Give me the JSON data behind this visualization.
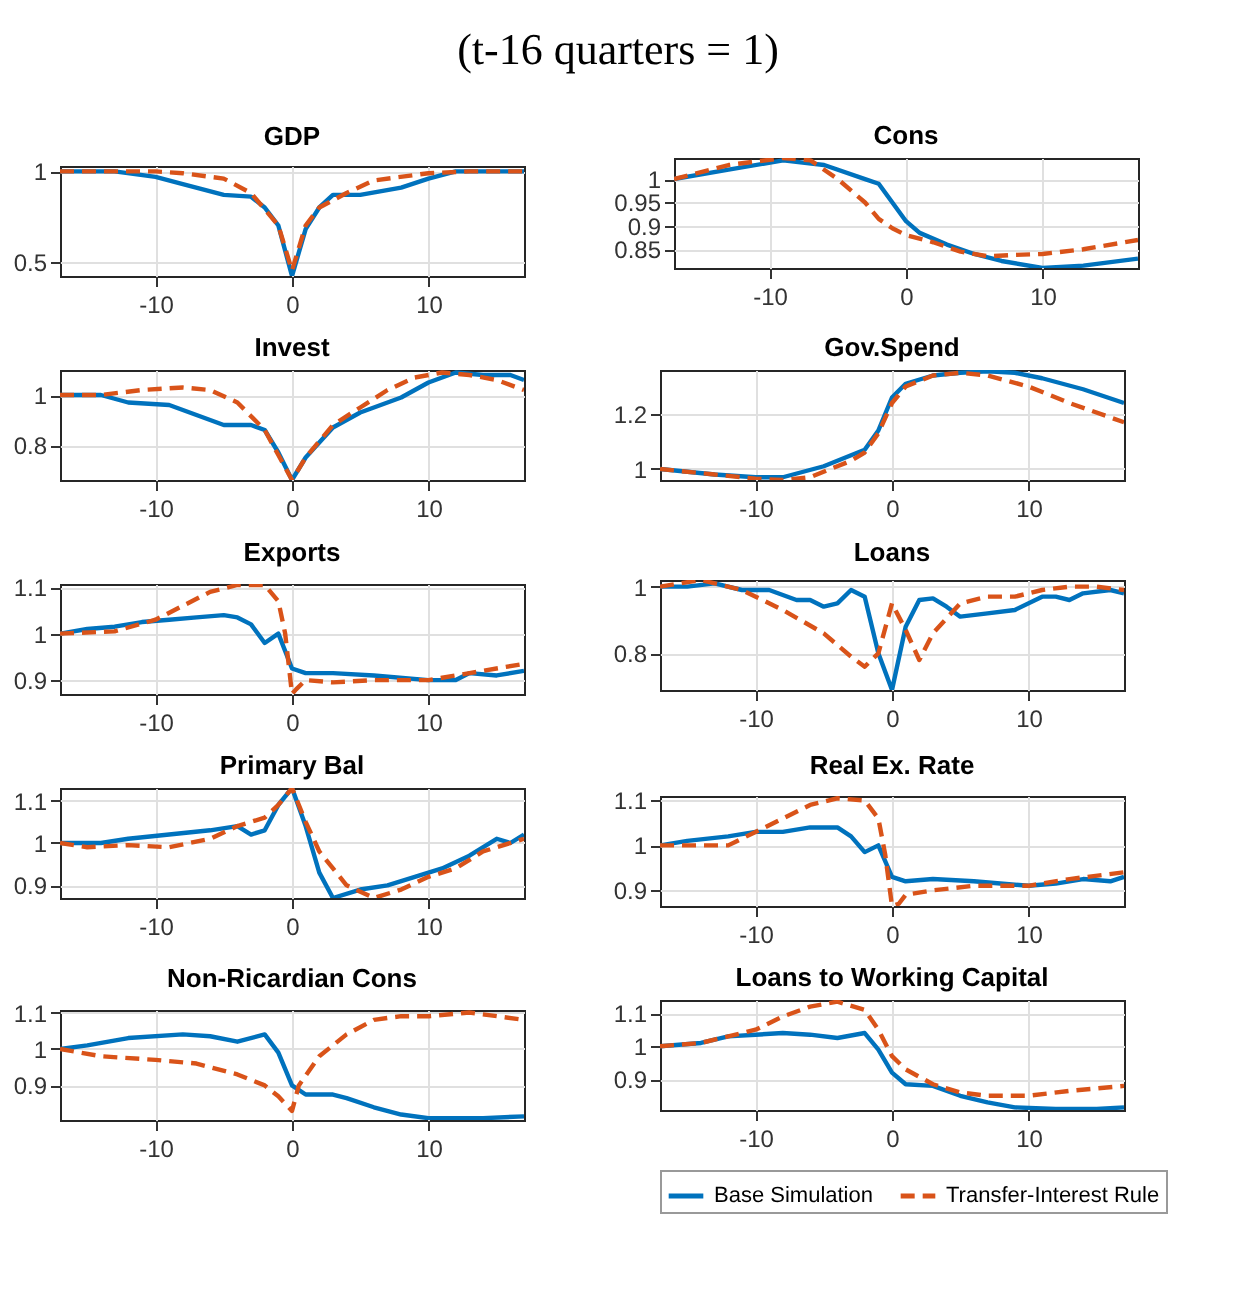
{
  "chart_data": [
    {
      "type": "line",
      "title": "GDP",
      "annotations": [
        "(t-16 quarters = 1)"
      ],
      "xlim": [
        -17,
        17
      ],
      "xticks": [
        -10,
        0,
        10
      ],
      "ylim": [
        0.42,
        1.03
      ],
      "yticks": [
        0.5,
        1
      ],
      "grid": true,
      "series": [
        {
          "color": "#0072bd",
          "line_style": "solid",
          "x": [
            -17,
            -13,
            -10,
            -8,
            -5,
            -3,
            -2,
            -1,
            0,
            1,
            2,
            3,
            5,
            8,
            10,
            12,
            17
          ],
          "values": [
            1,
            1,
            0.97,
            0.93,
            0.87,
            0.86,
            0.8,
            0.7,
            0.42,
            0.68,
            0.8,
            0.87,
            0.87,
            0.91,
            0.96,
            1,
            1
          ]
        },
        {
          "color": "#d95319",
          "line_style": "dashed",
          "x": [
            -17,
            -10,
            -8,
            -5,
            -3,
            -1,
            0,
            1,
            2,
            4,
            6,
            10,
            13,
            17
          ],
          "values": [
            1,
            1,
            0.99,
            0.96,
            0.88,
            0.7,
            0.45,
            0.7,
            0.8,
            0.88,
            0.95,
            0.99,
            1,
            1
          ]
        }
      ]
    },
    {
      "type": "line",
      "title": "Cons",
      "xlim": [
        -17,
        17
      ],
      "xticks": [
        -10,
        0,
        10
      ],
      "ylim": [
        0.81,
        1.045
      ],
      "yticks": [
        0.85,
        0.9,
        0.95,
        1
      ],
      "grid": true,
      "series": [
        {
          "color": "#0072bd",
          "line_style": "solid",
          "x": [
            -17,
            -13,
            -9,
            -6,
            -3,
            -2,
            -1,
            0,
            1,
            3,
            5,
            7,
            10,
            13,
            17
          ],
          "values": [
            1,
            1.02,
            1.04,
            1.03,
            1,
            0.99,
            0.95,
            0.91,
            0.885,
            0.86,
            0.84,
            0.825,
            0.81,
            0.815,
            0.83
          ]
        },
        {
          "color": "#d95319",
          "line_style": "dashed",
          "x": [
            -17,
            -13,
            -9,
            -7,
            -5,
            -3,
            -2,
            -1,
            0,
            2,
            4,
            6,
            8,
            10,
            13,
            17
          ],
          "values": [
            1,
            1.03,
            1.045,
            1.04,
            1,
            0.95,
            0.915,
            0.895,
            0.88,
            0.865,
            0.845,
            0.835,
            0.838,
            0.84,
            0.85,
            0.87
          ]
        }
      ]
    },
    {
      "type": "line",
      "title": "Invest",
      "xlim": [
        -17,
        17
      ],
      "xticks": [
        -10,
        0,
        10
      ],
      "ylim": [
        0.66,
        1.1
      ],
      "yticks": [
        0.8,
        1
      ],
      "grid": true,
      "series": [
        {
          "color": "#0072bd",
          "line_style": "solid",
          "x": [
            -17,
            -14,
            -12,
            -9,
            -7,
            -5,
            -3,
            -2,
            -1,
            0,
            1,
            3,
            5,
            8,
            10,
            12,
            14,
            16,
            17
          ],
          "values": [
            1,
            1,
            0.97,
            0.96,
            0.92,
            0.88,
            0.88,
            0.86,
            0.77,
            0.66,
            0.75,
            0.87,
            0.93,
            0.99,
            1.05,
            1.09,
            1.08,
            1.08,
            1.06
          ]
        },
        {
          "color": "#d95319",
          "line_style": "dashed",
          "x": [
            -17,
            -14,
            -11,
            -8,
            -6,
            -4,
            -2,
            -1,
            0,
            1,
            3,
            5,
            7,
            9,
            11,
            13,
            15,
            17
          ],
          "values": [
            1,
            1,
            1.02,
            1.03,
            1.02,
            0.97,
            0.86,
            0.76,
            0.66,
            0.75,
            0.88,
            0.95,
            1.02,
            1.07,
            1.09,
            1.08,
            1.06,
            1.02
          ]
        }
      ]
    },
    {
      "type": "line",
      "title": "Gov.Spend",
      "xlim": [
        -17,
        17
      ],
      "xticks": [
        -10,
        0,
        10
      ],
      "ylim": [
        0.96,
        1.36
      ],
      "yticks": [
        1,
        1.2
      ],
      "grid": true,
      "series": [
        {
          "color": "#0072bd",
          "line_style": "solid",
          "x": [
            -17,
            -13,
            -10,
            -8,
            -5,
            -3,
            -2,
            -1,
            0,
            1,
            3,
            5,
            7,
            9,
            11,
            14,
            17
          ],
          "values": [
            1,
            0.98,
            0.97,
            0.97,
            1.01,
            1.05,
            1.07,
            1.14,
            1.26,
            1.31,
            1.34,
            1.35,
            1.355,
            1.35,
            1.33,
            1.29,
            1.24
          ]
        },
        {
          "color": "#d95319",
          "line_style": "dashed",
          "x": [
            -17,
            -13,
            -10,
            -8,
            -6,
            -3,
            -2,
            -1,
            0,
            1,
            3,
            5,
            7,
            10,
            13,
            17
          ],
          "values": [
            1,
            0.98,
            0.965,
            0.96,
            0.97,
            1.03,
            1.06,
            1.13,
            1.24,
            1.3,
            1.34,
            1.35,
            1.34,
            1.3,
            1.24,
            1.17
          ]
        }
      ]
    },
    {
      "type": "line",
      "title": "Exports",
      "xlim": [
        -17,
        17
      ],
      "xticks": [
        -10,
        0,
        10
      ],
      "ylim": [
        0.87,
        1.107
      ],
      "yticks": [
        0.9,
        1,
        1.1
      ],
      "grid": true,
      "series": [
        {
          "color": "#0072bd",
          "line_style": "solid",
          "x": [
            -17,
            -15,
            -13,
            -11,
            -9,
            -7,
            -5,
            -4,
            -3,
            -2,
            -1,
            0,
            1,
            3,
            6,
            10,
            12,
            13,
            15,
            17
          ],
          "values": [
            1,
            1.01,
            1.015,
            1.025,
            1.03,
            1.035,
            1.04,
            1.035,
            1.02,
            0.98,
            1,
            0.925,
            0.915,
            0.915,
            0.91,
            0.9,
            0.9,
            0.915,
            0.91,
            0.92
          ]
        },
        {
          "color": "#d95319",
          "line_style": "dashed",
          "x": [
            -17,
            -13,
            -10,
            -8,
            -6,
            -4,
            -2,
            -1,
            -0.5,
            0,
            0.3,
            1,
            3,
            6,
            10,
            13,
            17
          ],
          "values": [
            1,
            1.005,
            1.03,
            1.06,
            1.09,
            1.105,
            1.105,
            1.07,
            1,
            0.87,
            0.88,
            0.9,
            0.895,
            0.9,
            0.9,
            0.915,
            0.935
          ]
        }
      ]
    },
    {
      "type": "line",
      "title": "Loans",
      "xlim": [
        -17,
        17
      ],
      "xticks": [
        -10,
        0,
        10
      ],
      "ylim": [
        0.69,
        1.02
      ],
      "yticks": [
        0.8,
        1
      ],
      "grid": true,
      "series": [
        {
          "color": "#0072bd",
          "line_style": "solid",
          "x": [
            -17,
            -15,
            -13,
            -11,
            -9,
            -7,
            -6,
            -5,
            -4,
            -3,
            -2,
            -1,
            0,
            1,
            2,
            3,
            4,
            5,
            7,
            9,
            11,
            12,
            13,
            14,
            16,
            17
          ],
          "values": [
            1,
            1,
            1.01,
            0.99,
            0.99,
            0.96,
            0.96,
            0.94,
            0.95,
            0.99,
            0.97,
            0.8,
            0.69,
            0.88,
            0.96,
            0.965,
            0.94,
            0.91,
            0.92,
            0.93,
            0.97,
            0.97,
            0.96,
            0.98,
            0.99,
            0.98
          ]
        },
        {
          "color": "#d95319",
          "line_style": "dashed",
          "x": [
            -17,
            -14,
            -11,
            -8,
            -5,
            -3,
            -2,
            -1,
            0,
            1,
            2,
            3,
            5,
            7,
            9,
            11,
            13,
            15,
            17
          ],
          "values": [
            1,
            1.02,
            0.99,
            0.93,
            0.86,
            0.79,
            0.76,
            0.8,
            0.95,
            0.87,
            0.78,
            0.86,
            0.95,
            0.97,
            0.97,
            0.99,
            1,
            1,
            0.99
          ]
        }
      ]
    },
    {
      "type": "line",
      "title": "Primary Bal",
      "xlim": [
        -17,
        17
      ],
      "xticks": [
        -10,
        0,
        10
      ],
      "ylim": [
        0.87,
        1.13
      ],
      "yticks": [
        0.9,
        1,
        1.1
      ],
      "grid": true,
      "series": [
        {
          "color": "#0072bd",
          "line_style": "solid",
          "x": [
            -17,
            -14,
            -12,
            -9,
            -6,
            -4,
            -3,
            -2,
            -1,
            0,
            1,
            2,
            3,
            5,
            7,
            9,
            11,
            13,
            15,
            16,
            17
          ],
          "values": [
            1,
            1,
            1.01,
            1.02,
            1.03,
            1.04,
            1.02,
            1.03,
            1.09,
            1.13,
            1.04,
            0.93,
            0.87,
            0.89,
            0.9,
            0.92,
            0.94,
            0.97,
            1.01,
            1,
            1.02
          ]
        },
        {
          "color": "#d95319",
          "line_style": "dashed",
          "x": [
            -17,
            -15,
            -12,
            -9,
            -6,
            -4,
            -2,
            -1,
            0,
            1,
            2,
            4,
            6,
            8,
            10,
            12,
            14,
            17
          ],
          "values": [
            1,
            0.99,
            0.995,
            0.99,
            1.01,
            1.04,
            1.06,
            1.09,
            1.13,
            1.05,
            0.98,
            0.9,
            0.87,
            0.89,
            0.92,
            0.94,
            0.98,
            1.01
          ]
        }
      ]
    },
    {
      "type": "line",
      "title": "Real Ex. Rate",
      "xlim": [
        -17,
        17
      ],
      "xticks": [
        -10,
        0,
        10
      ],
      "ylim": [
        0.865,
        1.11
      ],
      "yticks": [
        0.9,
        1,
        1.1
      ],
      "grid": true,
      "series": [
        {
          "color": "#0072bd",
          "line_style": "solid",
          "x": [
            -17,
            -15,
            -12,
            -10,
            -8,
            -6,
            -4,
            -3,
            -2,
            -1,
            0,
            1,
            3,
            6,
            10,
            12,
            14,
            16,
            17
          ],
          "values": [
            1,
            1.01,
            1.02,
            1.03,
            1.03,
            1.04,
            1.04,
            1.02,
            0.985,
            1,
            0.93,
            0.92,
            0.925,
            0.92,
            0.91,
            0.915,
            0.925,
            0.92,
            0.93
          ]
        },
        {
          "color": "#d95319",
          "line_style": "dashed",
          "x": [
            -17,
            -14,
            -12,
            -10,
            -8,
            -6,
            -4,
            -2,
            -1,
            -0.5,
            0,
            0.5,
            1,
            3,
            6,
            10,
            13,
            17
          ],
          "values": [
            1,
            1,
            1,
            1.03,
            1.06,
            1.09,
            1.105,
            1.1,
            1.06,
            0.98,
            0.865,
            0.87,
            0.89,
            0.9,
            0.91,
            0.91,
            0.925,
            0.94
          ]
        }
      ]
    },
    {
      "type": "line",
      "title": "Non-Ricardian Cons",
      "xlim": [
        -17,
        17
      ],
      "xticks": [
        -10,
        0,
        10
      ],
      "ylim": [
        0.805,
        1.107
      ],
      "yticks": [
        0.9,
        1,
        1.1
      ],
      "grid": true,
      "series": [
        {
          "color": "#0072bd",
          "line_style": "solid",
          "x": [
            -17,
            -15,
            -12,
            -8,
            -6,
            -4,
            -2,
            -1,
            0,
            1,
            3,
            4,
            6,
            8,
            10,
            14,
            17
          ],
          "values": [
            1,
            1.01,
            1.03,
            1.04,
            1.035,
            1.02,
            1.04,
            0.99,
            0.9,
            0.875,
            0.875,
            0.865,
            0.84,
            0.82,
            0.81,
            0.81,
            0.815
          ]
        },
        {
          "color": "#d95319",
          "line_style": "dashed",
          "x": [
            -17,
            -14,
            -10,
            -7,
            -4,
            -2,
            -1,
            0,
            0.5,
            2,
            4,
            6,
            8,
            10,
            13,
            17
          ],
          "values": [
            1,
            0.98,
            0.97,
            0.96,
            0.93,
            0.9,
            0.87,
            0.83,
            0.9,
            0.98,
            1.04,
            1.08,
            1.09,
            1.09,
            1.1,
            1.08
          ]
        }
      ]
    },
    {
      "type": "line",
      "title": "Loans to Working Capital",
      "xlim": [
        -17,
        17
      ],
      "xticks": [
        -10,
        0,
        10
      ],
      "ylim": [
        0.807,
        1.14
      ],
      "yticks": [
        0.9,
        1,
        1.1
      ],
      "grid": true,
      "legend": "bottom",
      "series": [
        {
          "name": "Base Simulation",
          "color": "#0072bd",
          "line_style": "solid",
          "x": [
            -17,
            -14,
            -12,
            -10,
            -8,
            -6,
            -4,
            -2,
            -1,
            0,
            1,
            3,
            5,
            7,
            9,
            12,
            15,
            17
          ],
          "values": [
            1,
            1.01,
            1.03,
            1.035,
            1.04,
            1.035,
            1.025,
            1.04,
            0.99,
            0.92,
            0.885,
            0.88,
            0.85,
            0.83,
            0.815,
            0.81,
            0.81,
            0.815
          ]
        },
        {
          "name": "Transfer-Interest Rule",
          "color": "#d95319",
          "line_style": "dashed",
          "x": [
            -17,
            -14,
            -12,
            -10,
            -8,
            -6,
            -4,
            -2,
            -1,
            0,
            1,
            3,
            5,
            7,
            10,
            13,
            17
          ],
          "values": [
            1,
            1.01,
            1.03,
            1.05,
            1.09,
            1.12,
            1.135,
            1.11,
            1.05,
            0.97,
            0.93,
            0.885,
            0.86,
            0.85,
            0.85,
            0.865,
            0.88
          ]
        }
      ]
    }
  ]
}
